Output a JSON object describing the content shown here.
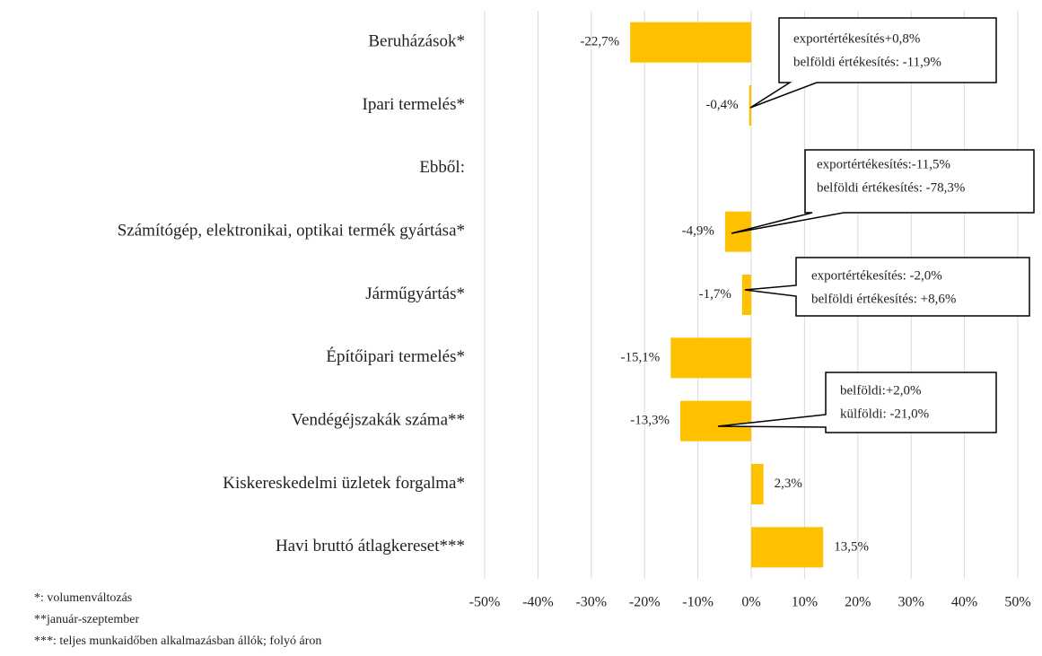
{
  "chart_data": {
    "type": "bar",
    "orientation": "horizontal",
    "categories": [
      "Beruházások*",
      "Ipari termelés*",
      "Ebből:",
      "Számítógép, elektronikai, optikai termék gyártása*",
      "Járműgyártás*",
      "Építőipari termelés*",
      "Vendégéjszakák száma**",
      "Kiskereskedelmi üzletek forgalma*",
      "Havi bruttó átlagkereset***"
    ],
    "values": [
      -22.7,
      -0.4,
      null,
      -4.9,
      -1.7,
      -15.1,
      -13.3,
      2.3,
      13.5
    ],
    "value_labels": [
      "-22,7%",
      "-0,4%",
      null,
      "-4,9%",
      "-1,7%",
      "-15,1%",
      "-13,3%",
      "2,3%",
      "13,5%"
    ],
    "color": "#ffc000",
    "xlim": [
      -50,
      50
    ],
    "xticks": [
      {
        "value": -50,
        "label": "-50%"
      },
      {
        "value": -40,
        "label": "-40%"
      },
      {
        "value": -30,
        "label": "-30%"
      },
      {
        "value": -20,
        "label": "-20%"
      },
      {
        "value": -10,
        "label": "-10%"
      },
      {
        "value": 0,
        "label": "0%"
      },
      {
        "value": 10,
        "label": "10%"
      },
      {
        "value": 20,
        "label": "20%"
      },
      {
        "value": 30,
        "label": "30%"
      },
      {
        "value": 40,
        "label": "40%"
      },
      {
        "value": 50,
        "label": "50%"
      }
    ],
    "grid": true,
    "annotations": [
      [
        "exportértékesítés+0,8%",
        "belföldi értékesítés: -11,9%"
      ],
      [
        "exportértékesítés:-11,5%",
        "belföldi értékesítés: -78,3%"
      ],
      [
        "exportértékesítés: -2,0%",
        "belföldi értékesítés: +8,6%"
      ],
      [
        "belföldi:+2,0%",
        "külföldi: -21,0%"
      ]
    ],
    "footnotes": [
      "*: volumenváltozás",
      "**január-szeptember",
      "***: teljes munkaidőben alkalmazásban állók; folyó áron"
    ]
  }
}
